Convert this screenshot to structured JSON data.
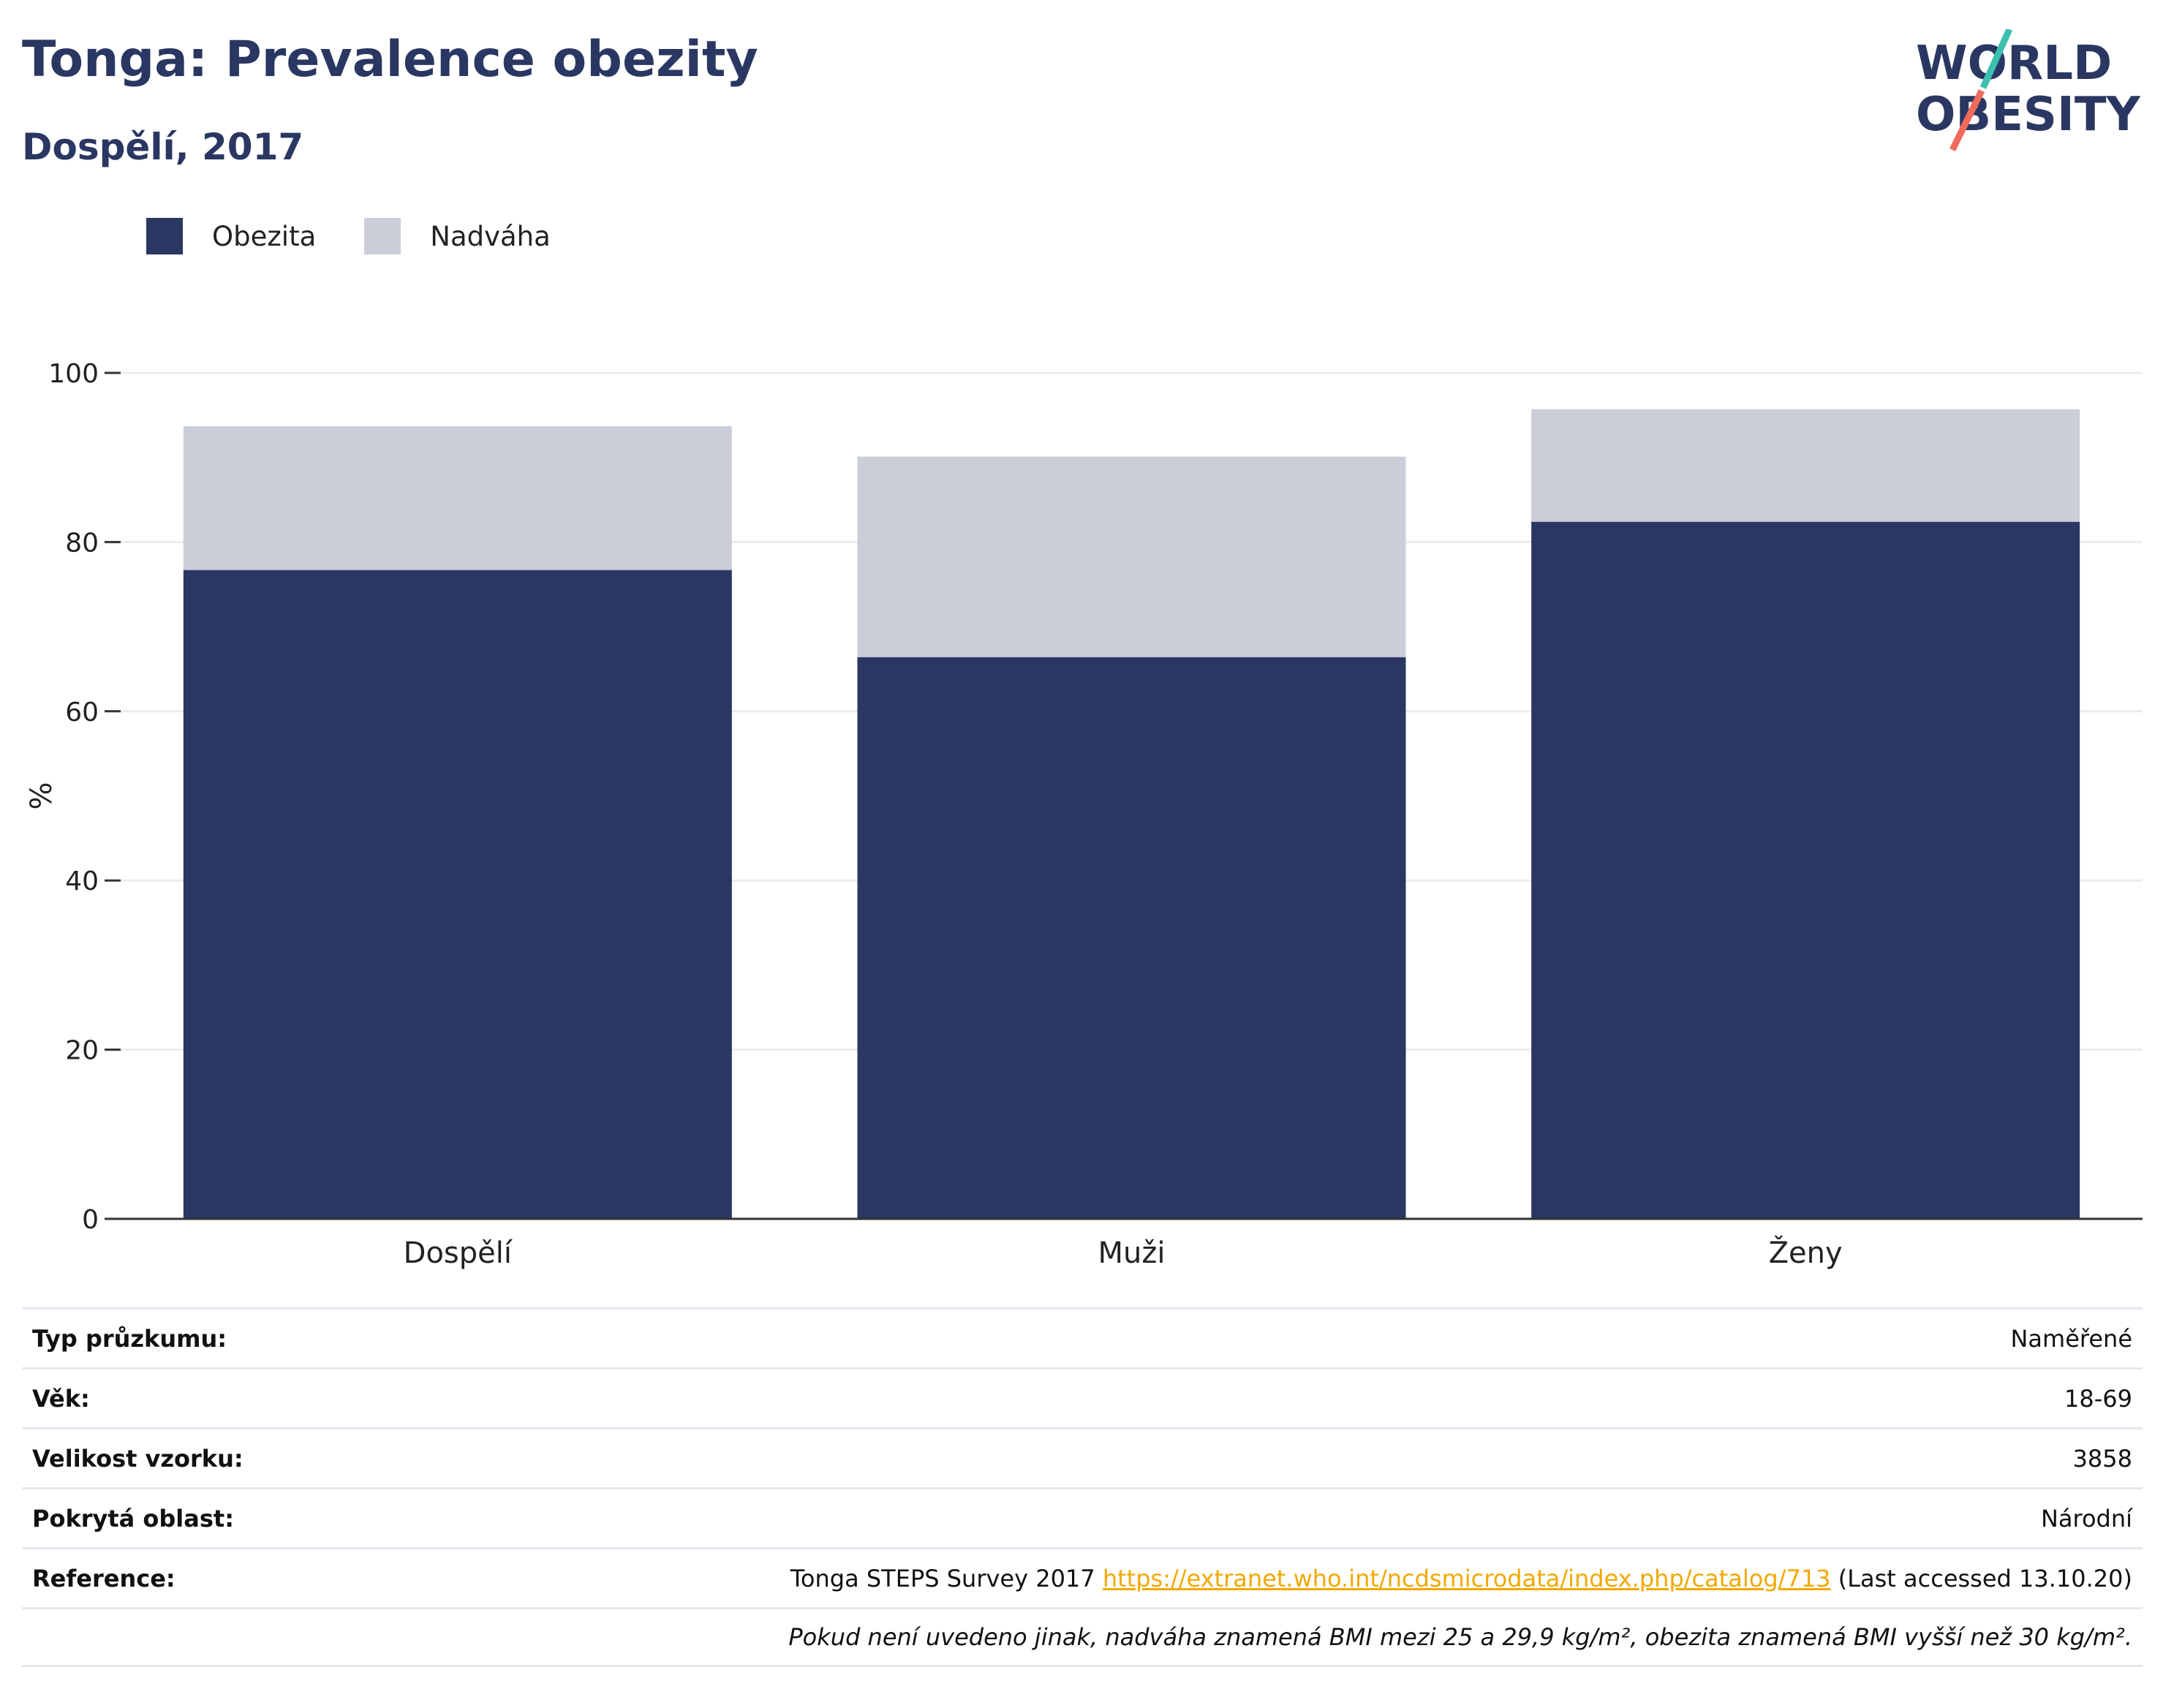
{
  "header": {
    "title": "Tonga: Prevalence obezity",
    "subtitle": "Dospělí, 2017",
    "logo_line1": "WORLD",
    "logo_line2": "OBESITY"
  },
  "colors": {
    "obezita": "#2a3762",
    "nadvaha": "#cbcdd9",
    "link": "#f2a900",
    "logo_teal": "#3cbfae",
    "logo_coral": "#f06b5b"
  },
  "chart_data": {
    "type": "bar",
    "stacked": true,
    "categories": [
      "Dospělí",
      "Muži",
      "Ženy"
    ],
    "series": [
      {
        "name": "Obezita",
        "values": [
          76.7,
          66.4,
          82.4
        ]
      },
      {
        "name": "Nadváha",
        "values": [
          17.0,
          23.7,
          13.3
        ]
      }
    ],
    "ylabel": "%",
    "xlabel": "",
    "ylim": [
      0,
      100
    ],
    "yticks": [
      0,
      20,
      40,
      60,
      80,
      100
    ],
    "grid": true,
    "legend_position": "top-left"
  },
  "info": {
    "rows": [
      {
        "label": "Typ průzkumu:",
        "value": "Naměřené"
      },
      {
        "label": "Věk:",
        "value": "18-69"
      },
      {
        "label": "Velikost vzorku:",
        "value": "3858"
      },
      {
        "label": "Pokrytá oblast:",
        "value": "Národní"
      }
    ],
    "reference": {
      "label": "Reference:",
      "prefix": "Tonga STEPS Survey 2017",
      "url": "https://extranet.who.int/ncdsmicrodata/index.php/catalog/713",
      "suffix": "(Last accessed 13.10.20)"
    },
    "note": "Pokud není uvedeno jinak, nadváha znamená BMI mezi 25 a 29,9 kg/m², obezita znamená BMI vyšší než 30 kg/m²."
  }
}
